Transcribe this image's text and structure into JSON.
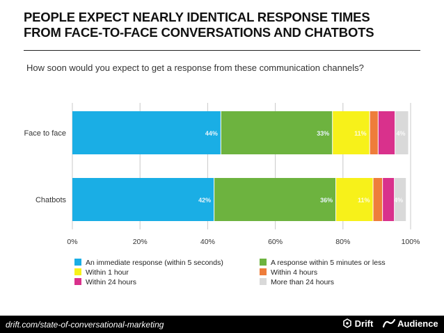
{
  "header": {
    "title_line1": "PEOPLE EXPECT NEARLY IDENTICAL RESPONSE TIMES",
    "title_line2": "FROM FACE-TO-FACE CONVERSATIONS AND CHATBOTS",
    "subtitle": "How soon would you expect to get a response from these communication channels?"
  },
  "chart_data": {
    "type": "bar",
    "orientation": "horizontal",
    "stacked": true,
    "categories": [
      "Face to face",
      "Chatbots"
    ],
    "series": [
      {
        "name": "An immediate response (within 5 seconds)",
        "color": "#1aaee5",
        "values": [
          44,
          42
        ],
        "labels": [
          "44%",
          "42%"
        ]
      },
      {
        "name": "A response within 5 minutes or less",
        "color": "#6db33f",
        "values": [
          33,
          36
        ],
        "labels": [
          "33%",
          "36%"
        ]
      },
      {
        "name": "Within 1 hour",
        "color": "#f7f11a",
        "values": [
          11,
          11
        ],
        "labels": [
          "11%",
          "11%"
        ]
      },
      {
        "name": "Within 4 hours",
        "color": "#ee7d3b",
        "values": [
          2.5,
          2.8
        ],
        "labels": [
          "",
          ""
        ]
      },
      {
        "name": "Within 24 hours",
        "color": "#d9318c",
        "values": [
          5,
          3.5
        ],
        "labels": [
          "",
          ""
        ]
      },
      {
        "name": "More than 24 hours",
        "color": "#d9d9d9",
        "values": [
          4,
          3.5
        ],
        "labels": [
          "4%",
          "4%"
        ]
      }
    ],
    "xlim": [
      0,
      100
    ],
    "xticks": [
      "0%",
      "20%",
      "40%",
      "60%",
      "80%",
      "100%"
    ],
    "grid": true,
    "legend_position": "bottom"
  },
  "footer": {
    "url": "drift.com/state-of-conversational-marketing",
    "brand1": "Drift",
    "brand2": "Audience"
  }
}
